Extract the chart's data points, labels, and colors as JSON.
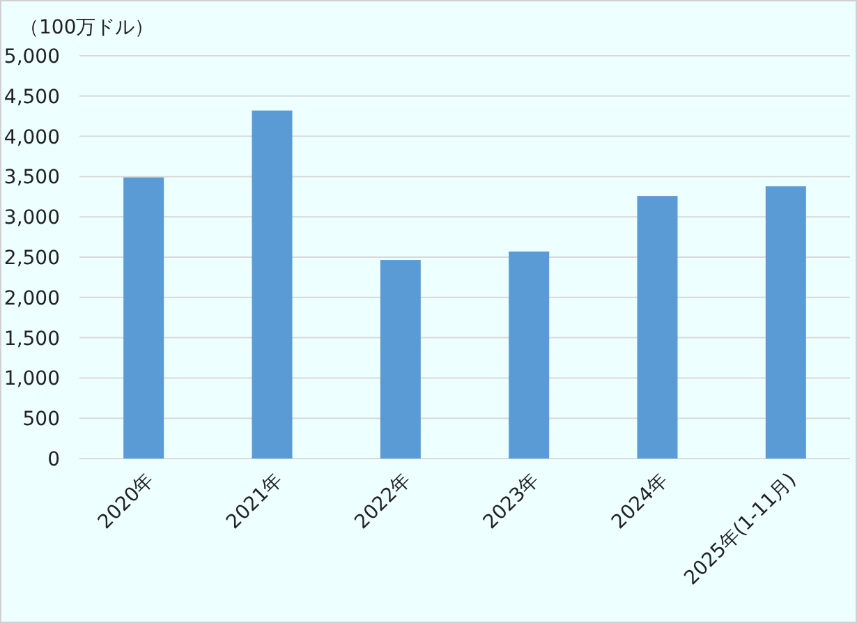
{
  "chart_data": {
    "type": "bar",
    "ylabel": "（100万ドル）",
    "categories": [
      "2020年",
      "2021年",
      "2022年",
      "2023年",
      "2024年",
      "2025年(1-11月)"
    ],
    "values": [
      3490,
      4320,
      2465,
      2570,
      3260,
      3380
    ],
    "color": "#5b9bd5",
    "ylim": [
      0,
      5000
    ],
    "yticks": [
      {
        "value": 0,
        "label": "0"
      },
      {
        "value": 500,
        "label": "500"
      },
      {
        "value": 1000,
        "label": "1,000"
      },
      {
        "value": 1500,
        "label": "1,500"
      },
      {
        "value": 2000,
        "label": "2,000"
      },
      {
        "value": 2500,
        "label": "2,500"
      },
      {
        "value": 3000,
        "label": "3,000"
      },
      {
        "value": 3500,
        "label": "3,500"
      },
      {
        "value": 4000,
        "label": "4,000"
      },
      {
        "value": 4500,
        "label": "4,500"
      },
      {
        "value": 5000,
        "label": "5,000"
      }
    ],
    "grid": "y"
  }
}
